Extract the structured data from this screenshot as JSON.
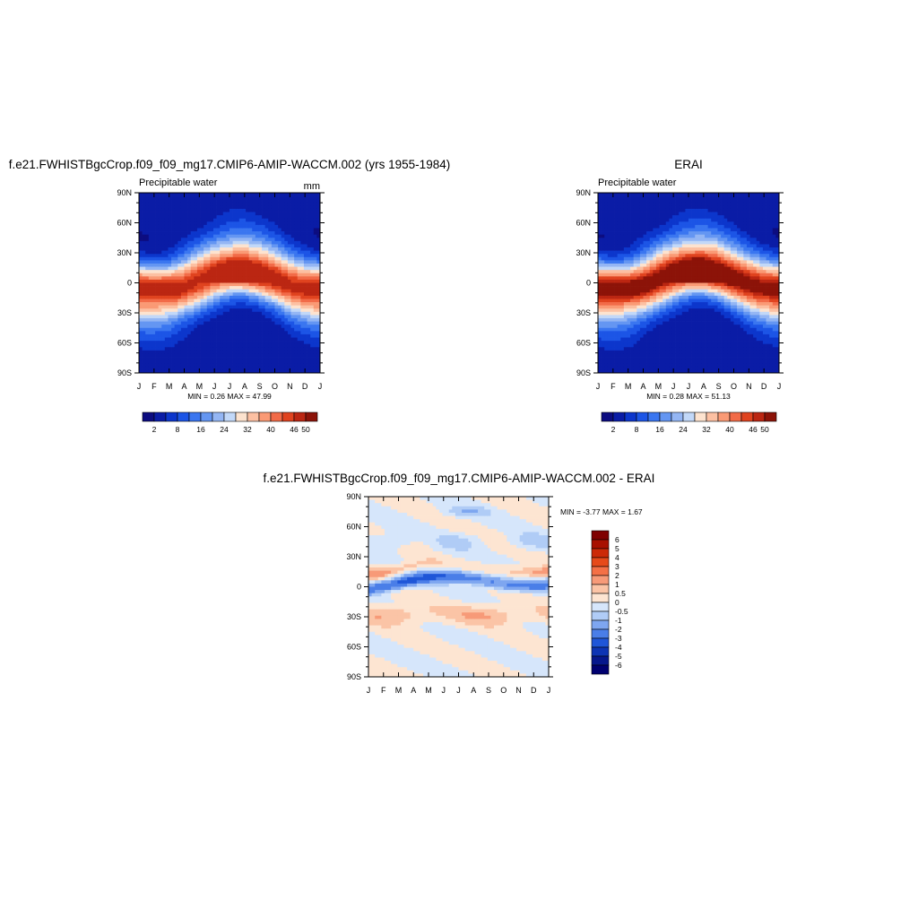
{
  "chart_data": [
    {
      "type": "heatmap",
      "title": "f.e21.FWHISTBgcCrop.f09_f09_mg17.CMIP6-AMIP-WACCM.002 (yrs 1955-1984)",
      "left_label": "Precipitable water",
      "units": "mm",
      "x_ticks": [
        "J",
        "F",
        "M",
        "A",
        "M",
        "J",
        "J",
        "A",
        "S",
        "O",
        "N",
        "D",
        "J"
      ],
      "y_ticks": [
        "90N",
        "60N",
        "30N",
        "0",
        "30S",
        "60S",
        "90S"
      ],
      "stats": "MIN =   0.26 MAX =  47.99",
      "min": 0.26,
      "max": 47.99,
      "colorbar_labels": [
        "2",
        "8",
        "16",
        "24",
        "32",
        "40",
        "46",
        "50"
      ],
      "field": {
        "equator_peak_by_month": [
          46,
          45,
          45,
          44,
          45,
          46,
          47,
          48,
          47,
          46,
          45,
          45,
          46
        ],
        "itcz_latitude_by_month": [
          -4,
          -5,
          -5,
          -2,
          2,
          6,
          9,
          10,
          8,
          5,
          0,
          -3,
          -4
        ]
      }
    },
    {
      "type": "heatmap",
      "title": "ERAI",
      "left_label": "Precipitable water",
      "x_ticks": [
        "J",
        "F",
        "M",
        "A",
        "M",
        "J",
        "J",
        "A",
        "S",
        "O",
        "N",
        "D",
        "J"
      ],
      "y_ticks": [
        "90N",
        "60N",
        "30N",
        "0",
        "30S",
        "60S",
        "90S"
      ],
      "stats": "MIN =   0.28 MAX =  51.13",
      "min": 0.28,
      "max": 51.13,
      "colorbar_labels": [
        "2",
        "8",
        "16",
        "24",
        "32",
        "40",
        "46",
        "50"
      ],
      "field": {
        "equator_peak_by_month": [
          48,
          48,
          47,
          48,
          49,
          50,
          51,
          51,
          50,
          49,
          48,
          48,
          48
        ],
        "itcz_latitude_by_month": [
          -3,
          -4,
          -4,
          -1,
          3,
          7,
          10,
          11,
          9,
          5,
          1,
          -2,
          -3
        ]
      }
    },
    {
      "type": "heatmap",
      "title": "f.e21.FWHISTBgcCrop.f09_f09_mg17.CMIP6-AMIP-WACCM.002 - ERAI",
      "x_ticks": [
        "J",
        "F",
        "M",
        "A",
        "M",
        "J",
        "J",
        "A",
        "S",
        "O",
        "N",
        "D",
        "J"
      ],
      "y_ticks": [
        "90N",
        "60N",
        "30N",
        "0",
        "30S",
        "60S",
        "90S"
      ],
      "stats": "MIN =  -3.77 MAX =   1.67",
      "min": -3.77,
      "max": 1.67,
      "colorbar_labels": [
        "6",
        "5",
        "4",
        "3",
        "2",
        "1",
        "0.5",
        "0",
        "-0.5",
        "-1",
        "-2",
        "-3",
        "-4",
        "-5",
        "-6"
      ]
    }
  ],
  "palettes": {
    "sequential": [
      "#0c0c80",
      "#0a1ca6",
      "#0c36cc",
      "#1c55e6",
      "#3a76f0",
      "#6496f2",
      "#94b6f4",
      "#c2d8f8",
      "#fde3cf",
      "#fcc0a2",
      "#fa9a75",
      "#f26b48",
      "#e0431f",
      "#bb2612",
      "#8c1308"
    ],
    "difference": [
      "#7f0000",
      "#a81000",
      "#cc2a08",
      "#e64a1a",
      "#f47046",
      "#f79a78",
      "#fbc4a6",
      "#fde5d2",
      "#d6e6fb",
      "#b0ccf6",
      "#7ea6f0",
      "#4a7ee8",
      "#1f56d8",
      "#0d34b4",
      "#06178c",
      "#000070"
    ]
  }
}
